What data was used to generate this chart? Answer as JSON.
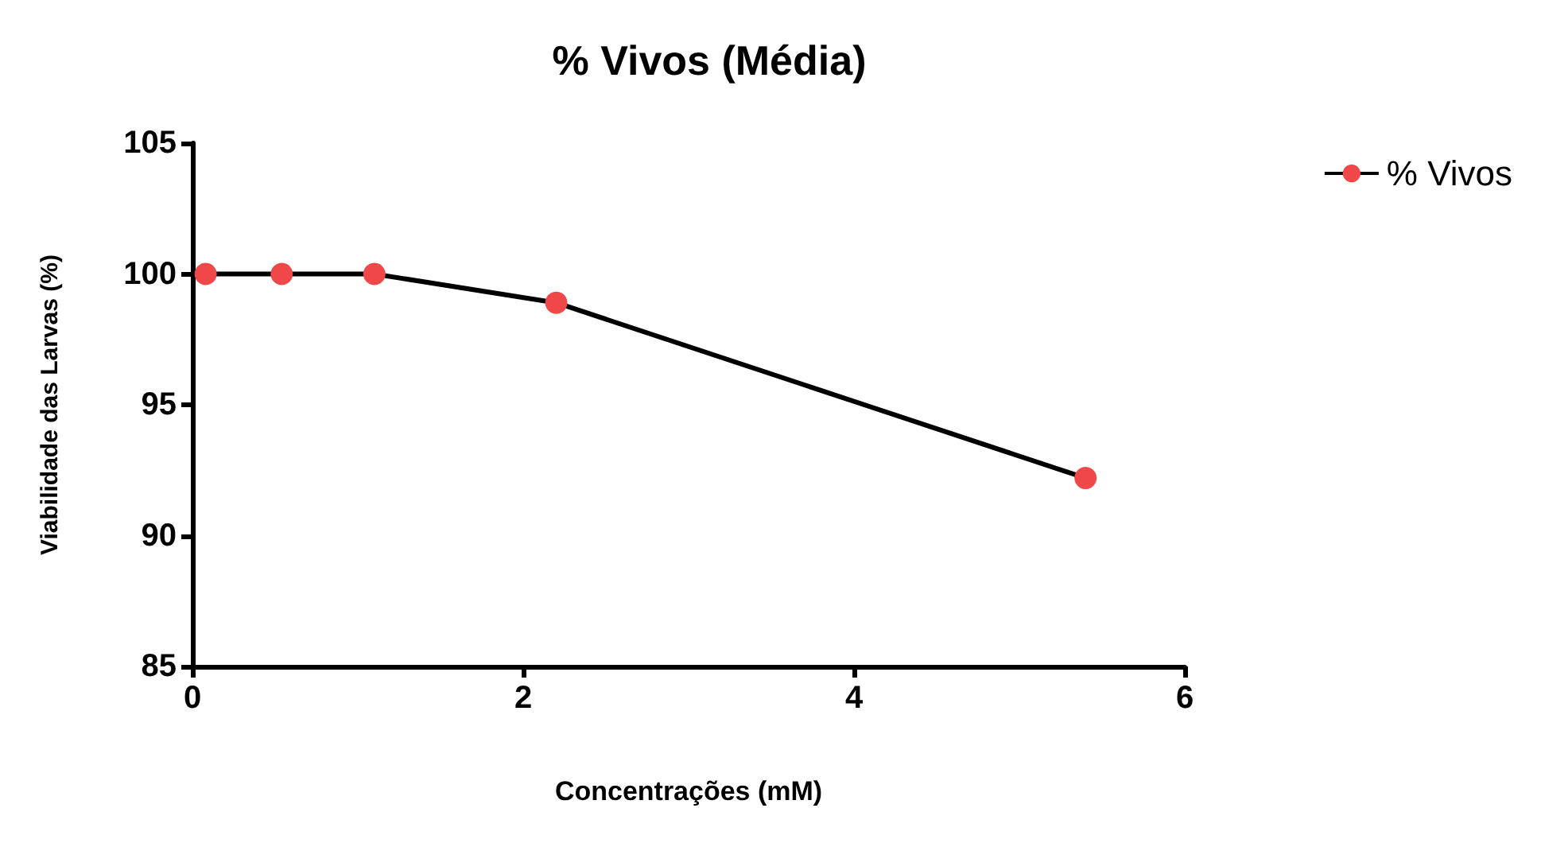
{
  "chart_data": {
    "type": "line",
    "title": "% Vivos (Média)",
    "xlabel": "Concentrações (mM)",
    "ylabel": "Viabilidade das Larvas (%)",
    "x": [
      0.08,
      0.54,
      1.1,
      2.2,
      5.4
    ],
    "series": [
      {
        "name": "% Vivos",
        "color": "#f04848",
        "values": [
          100,
          100,
          100,
          98.9,
          92.2
        ]
      }
    ],
    "xlim": [
      0,
      6
    ],
    "xticks": [
      0,
      2,
      4,
      6
    ],
    "ylim": [
      85,
      105
    ],
    "yticks": [
      85,
      90,
      95,
      100,
      105
    ],
    "grid": false,
    "legend": "top right",
    "marker": "circle",
    "line_style": "solid"
  }
}
